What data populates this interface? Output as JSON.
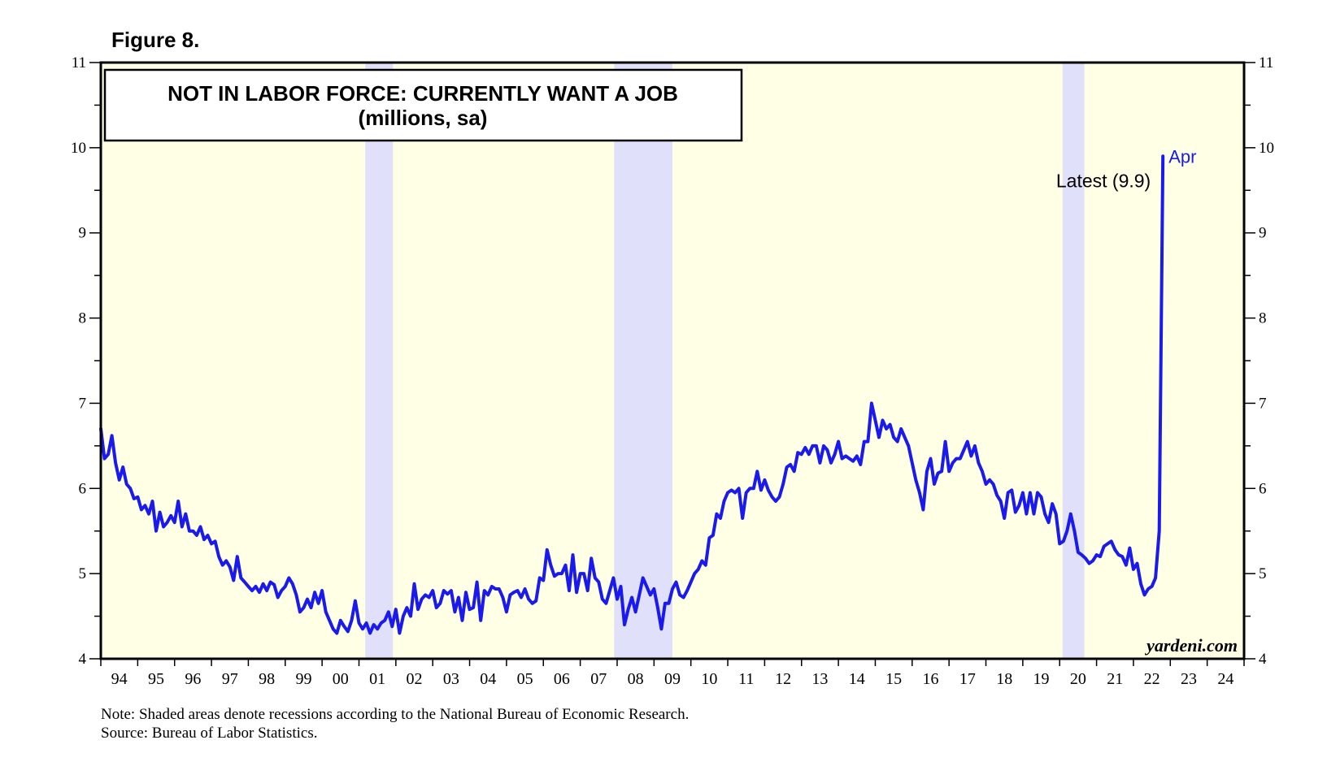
{
  "figure_label": "Figure 8.",
  "notes": {
    "note": "Note: Shaded areas denote recessions according to the National Bureau of Economic Research.",
    "source": "Source: Bureau of Labor Statistics."
  },
  "watermark": "yardeni.com",
  "colors": {
    "background": "#ffffe5",
    "recession": "#e0e0fa",
    "line": "#1a1aee",
    "frame": "#000000"
  },
  "chart_data": {
    "type": "line",
    "title": "NOT IN LABOR FORCE: CURRENTLY WANT A JOB",
    "subtitle": "(millions, sa)",
    "xlabel": "",
    "ylabel": "",
    "xlim": [
      1994,
      2025
    ],
    "ylim": [
      4,
      11
    ],
    "y_ticks": [
      4,
      5,
      6,
      7,
      8,
      9,
      10,
      11
    ],
    "x_tick_labels": [
      "94",
      "95",
      "96",
      "97",
      "98",
      "99",
      "00",
      "01",
      "02",
      "03",
      "04",
      "05",
      "06",
      "07",
      "08",
      "09",
      "10",
      "11",
      "12",
      "13",
      "14",
      "15",
      "16",
      "17",
      "18",
      "19",
      "20",
      "21",
      "22",
      "23",
      "24"
    ],
    "recessions": [
      [
        2001.17,
        2001.92
      ],
      [
        2007.92,
        2009.5
      ],
      [
        2020.08,
        2020.67
      ]
    ],
    "annotations": [
      {
        "text": "Latest (9.9)",
        "x": 2020.25,
        "y": 9.9
      },
      {
        "text": "Apr",
        "x": 2020.25,
        "y": 9.9
      }
    ],
    "series": [
      {
        "name": "Not in labor force: currently want a job",
        "points": [
          [
            1994.0,
            6.7
          ],
          [
            1994.1,
            6.35
          ],
          [
            1994.2,
            6.4
          ],
          [
            1994.3,
            6.62
          ],
          [
            1994.4,
            6.3
          ],
          [
            1994.5,
            6.1
          ],
          [
            1994.6,
            6.25
          ],
          [
            1994.7,
            6.05
          ],
          [
            1994.8,
            6.0
          ],
          [
            1994.9,
            5.88
          ],
          [
            1995.0,
            5.9
          ],
          [
            1995.1,
            5.75
          ],
          [
            1995.2,
            5.8
          ],
          [
            1995.3,
            5.7
          ],
          [
            1995.4,
            5.85
          ],
          [
            1995.5,
            5.5
          ],
          [
            1995.6,
            5.72
          ],
          [
            1995.7,
            5.55
          ],
          [
            1995.8,
            5.6
          ],
          [
            1995.9,
            5.68
          ],
          [
            1996.0,
            5.6
          ],
          [
            1996.1,
            5.85
          ],
          [
            1996.2,
            5.55
          ],
          [
            1996.3,
            5.7
          ],
          [
            1996.4,
            5.5
          ],
          [
            1996.5,
            5.5
          ],
          [
            1996.6,
            5.45
          ],
          [
            1996.7,
            5.55
          ],
          [
            1996.8,
            5.4
          ],
          [
            1996.9,
            5.45
          ],
          [
            1997.0,
            5.35
          ],
          [
            1997.1,
            5.38
          ],
          [
            1997.2,
            5.2
          ],
          [
            1997.3,
            5.1
          ],
          [
            1997.4,
            5.15
          ],
          [
            1997.5,
            5.08
          ],
          [
            1997.6,
            4.92
          ],
          [
            1997.7,
            5.2
          ],
          [
            1997.8,
            4.95
          ],
          [
            1997.9,
            4.9
          ],
          [
            1998.0,
            4.85
          ],
          [
            1998.1,
            4.8
          ],
          [
            1998.2,
            4.85
          ],
          [
            1998.3,
            4.78
          ],
          [
            1998.4,
            4.88
          ],
          [
            1998.5,
            4.8
          ],
          [
            1998.6,
            4.9
          ],
          [
            1998.7,
            4.87
          ],
          [
            1998.8,
            4.72
          ],
          [
            1998.9,
            4.8
          ],
          [
            1999.0,
            4.85
          ],
          [
            1999.1,
            4.95
          ],
          [
            1999.2,
            4.88
          ],
          [
            1999.3,
            4.75
          ],
          [
            1999.4,
            4.55
          ],
          [
            1999.5,
            4.6
          ],
          [
            1999.6,
            4.7
          ],
          [
            1999.7,
            4.6
          ],
          [
            1999.8,
            4.78
          ],
          [
            1999.9,
            4.65
          ],
          [
            2000.0,
            4.8
          ],
          [
            2000.1,
            4.55
          ],
          [
            2000.2,
            4.45
          ],
          [
            2000.3,
            4.35
          ],
          [
            2000.4,
            4.3
          ],
          [
            2000.5,
            4.45
          ],
          [
            2000.6,
            4.38
          ],
          [
            2000.7,
            4.32
          ],
          [
            2000.8,
            4.45
          ],
          [
            2000.9,
            4.68
          ],
          [
            2001.0,
            4.42
          ],
          [
            2001.1,
            4.35
          ],
          [
            2001.2,
            4.42
          ],
          [
            2001.3,
            4.3
          ],
          [
            2001.4,
            4.4
          ],
          [
            2001.5,
            4.35
          ],
          [
            2001.6,
            4.42
          ],
          [
            2001.7,
            4.45
          ],
          [
            2001.8,
            4.55
          ],
          [
            2001.9,
            4.38
          ],
          [
            2002.0,
            4.58
          ],
          [
            2002.1,
            4.3
          ],
          [
            2002.2,
            4.5
          ],
          [
            2002.3,
            4.6
          ],
          [
            2002.4,
            4.5
          ],
          [
            2002.5,
            4.88
          ],
          [
            2002.6,
            4.58
          ],
          [
            2002.7,
            4.7
          ],
          [
            2002.8,
            4.75
          ],
          [
            2002.9,
            4.72
          ],
          [
            2003.0,
            4.8
          ],
          [
            2003.1,
            4.6
          ],
          [
            2003.2,
            4.65
          ],
          [
            2003.3,
            4.8
          ],
          [
            2003.4,
            4.76
          ],
          [
            2003.5,
            4.8
          ],
          [
            2003.6,
            4.55
          ],
          [
            2003.7,
            4.72
          ],
          [
            2003.8,
            4.45
          ],
          [
            2003.9,
            4.78
          ],
          [
            2004.0,
            4.58
          ],
          [
            2004.1,
            4.6
          ],
          [
            2004.2,
            4.9
          ],
          [
            2004.3,
            4.45
          ],
          [
            2004.4,
            4.8
          ],
          [
            2004.5,
            4.75
          ],
          [
            2004.6,
            4.85
          ],
          [
            2004.7,
            4.82
          ],
          [
            2004.8,
            4.82
          ],
          [
            2004.9,
            4.72
          ],
          [
            2005.0,
            4.55
          ],
          [
            2005.1,
            4.75
          ],
          [
            2005.2,
            4.78
          ],
          [
            2005.3,
            4.8
          ],
          [
            2005.4,
            4.72
          ],
          [
            2005.5,
            4.82
          ],
          [
            2005.6,
            4.7
          ],
          [
            2005.7,
            4.65
          ],
          [
            2005.8,
            4.68
          ],
          [
            2005.9,
            4.95
          ],
          [
            2006.0,
            4.92
          ],
          [
            2006.1,
            5.28
          ],
          [
            2006.2,
            5.1
          ],
          [
            2006.3,
            4.97
          ],
          [
            2006.4,
            5.0
          ],
          [
            2006.5,
            5.0
          ],
          [
            2006.6,
            5.1
          ],
          [
            2006.7,
            4.8
          ],
          [
            2006.8,
            5.22
          ],
          [
            2006.9,
            4.78
          ],
          [
            2007.0,
            5.0
          ],
          [
            2007.1,
            5.0
          ],
          [
            2007.2,
            4.8
          ],
          [
            2007.3,
            5.18
          ],
          [
            2007.4,
            4.95
          ],
          [
            2007.5,
            4.9
          ],
          [
            2007.6,
            4.7
          ],
          [
            2007.7,
            4.65
          ],
          [
            2007.8,
            4.8
          ],
          [
            2007.9,
            4.95
          ],
          [
            2008.0,
            4.7
          ],
          [
            2008.1,
            4.85
          ],
          [
            2008.2,
            4.4
          ],
          [
            2008.3,
            4.58
          ],
          [
            2008.4,
            4.72
          ],
          [
            2008.5,
            4.55
          ],
          [
            2008.6,
            4.75
          ],
          [
            2008.7,
            4.95
          ],
          [
            2008.8,
            4.85
          ],
          [
            2008.9,
            4.75
          ],
          [
            2009.0,
            4.82
          ],
          [
            2009.1,
            4.6
          ],
          [
            2009.2,
            4.35
          ],
          [
            2009.3,
            4.65
          ],
          [
            2009.4,
            4.65
          ],
          [
            2009.5,
            4.82
          ],
          [
            2009.6,
            4.9
          ],
          [
            2009.7,
            4.75
          ],
          [
            2009.8,
            4.72
          ],
          [
            2009.9,
            4.8
          ],
          [
            2010.0,
            4.9
          ],
          [
            2010.1,
            5.0
          ],
          [
            2010.2,
            5.05
          ],
          [
            2010.3,
            5.15
          ],
          [
            2010.4,
            5.1
          ],
          [
            2010.5,
            5.42
          ],
          [
            2010.6,
            5.45
          ],
          [
            2010.7,
            5.7
          ],
          [
            2010.8,
            5.65
          ],
          [
            2010.9,
            5.85
          ],
          [
            2011.0,
            5.95
          ],
          [
            2011.1,
            5.98
          ],
          [
            2011.2,
            5.95
          ],
          [
            2011.3,
            6.0
          ],
          [
            2011.4,
            5.65
          ],
          [
            2011.5,
            5.95
          ],
          [
            2011.6,
            6.0
          ],
          [
            2011.7,
            6.0
          ],
          [
            2011.8,
            6.2
          ],
          [
            2011.9,
            5.98
          ],
          [
            2012.0,
            6.1
          ],
          [
            2012.1,
            5.98
          ],
          [
            2012.2,
            5.9
          ],
          [
            2012.3,
            5.85
          ],
          [
            2012.4,
            5.9
          ],
          [
            2012.5,
            6.05
          ],
          [
            2012.6,
            6.25
          ],
          [
            2012.7,
            6.28
          ],
          [
            2012.8,
            6.2
          ],
          [
            2012.9,
            6.42
          ],
          [
            2013.0,
            6.4
          ],
          [
            2013.1,
            6.48
          ],
          [
            2013.2,
            6.4
          ],
          [
            2013.3,
            6.5
          ],
          [
            2013.4,
            6.5
          ],
          [
            2013.5,
            6.3
          ],
          [
            2013.6,
            6.5
          ],
          [
            2013.7,
            6.45
          ],
          [
            2013.8,
            6.3
          ],
          [
            2013.9,
            6.4
          ],
          [
            2014.0,
            6.55
          ],
          [
            2014.1,
            6.35
          ],
          [
            2014.2,
            6.38
          ],
          [
            2014.3,
            6.35
          ],
          [
            2014.4,
            6.32
          ],
          [
            2014.5,
            6.38
          ],
          [
            2014.6,
            6.28
          ],
          [
            2014.7,
            6.55
          ],
          [
            2014.8,
            6.55
          ],
          [
            2014.9,
            7.0
          ],
          [
            2015.0,
            6.8
          ],
          [
            2015.1,
            6.6
          ],
          [
            2015.2,
            6.8
          ],
          [
            2015.3,
            6.7
          ],
          [
            2015.4,
            6.75
          ],
          [
            2015.5,
            6.6
          ],
          [
            2015.6,
            6.55
          ],
          [
            2015.7,
            6.7
          ],
          [
            2015.8,
            6.6
          ],
          [
            2015.9,
            6.5
          ],
          [
            2016.0,
            6.3
          ],
          [
            2016.1,
            6.1
          ],
          [
            2016.2,
            5.95
          ],
          [
            2016.3,
            5.75
          ],
          [
            2016.4,
            6.2
          ],
          [
            2016.5,
            6.35
          ],
          [
            2016.6,
            6.05
          ],
          [
            2016.7,
            6.18
          ],
          [
            2016.8,
            6.2
          ],
          [
            2016.9,
            6.55
          ],
          [
            2017.0,
            6.2
          ],
          [
            2017.1,
            6.3
          ],
          [
            2017.2,
            6.35
          ],
          [
            2017.3,
            6.35
          ],
          [
            2017.4,
            6.45
          ],
          [
            2017.5,
            6.55
          ],
          [
            2017.6,
            6.38
          ],
          [
            2017.7,
            6.5
          ],
          [
            2017.8,
            6.3
          ],
          [
            2017.9,
            6.2
          ],
          [
            2018.0,
            6.05
          ],
          [
            2018.1,
            6.1
          ],
          [
            2018.2,
            6.05
          ],
          [
            2018.3,
            5.92
          ],
          [
            2018.4,
            5.85
          ],
          [
            2018.5,
            5.65
          ],
          [
            2018.6,
            5.95
          ],
          [
            2018.7,
            5.98
          ],
          [
            2018.8,
            5.72
          ],
          [
            2018.9,
            5.8
          ],
          [
            2019.0,
            5.95
          ],
          [
            2019.1,
            5.7
          ],
          [
            2019.2,
            5.95
          ],
          [
            2019.3,
            5.7
          ],
          [
            2019.4,
            5.95
          ],
          [
            2019.5,
            5.9
          ],
          [
            2019.6,
            5.7
          ],
          [
            2019.7,
            5.6
          ],
          [
            2019.8,
            5.82
          ],
          [
            2019.9,
            5.7
          ],
          [
            2020.0,
            5.35
          ],
          [
            2020.1,
            5.38
          ],
          [
            2020.2,
            5.5
          ],
          [
            2020.3,
            5.7
          ],
          [
            2020.4,
            5.5
          ],
          [
            2020.5,
            5.25
          ],
          [
            2020.6,
            5.22
          ],
          [
            2020.7,
            5.18
          ],
          [
            2020.8,
            5.12
          ],
          [
            2020.9,
            5.15
          ],
          [
            2021.0,
            5.22
          ],
          [
            2021.1,
            5.2
          ],
          [
            2021.2,
            5.32
          ],
          [
            2021.3,
            5.35
          ],
          [
            2021.4,
            5.38
          ],
          [
            2021.5,
            5.28
          ],
          [
            2021.6,
            5.22
          ],
          [
            2021.7,
            5.2
          ],
          [
            2021.8,
            5.1
          ],
          [
            2021.9,
            5.3
          ],
          [
            2022.0,
            5.05
          ],
          [
            2022.1,
            5.12
          ],
          [
            2022.2,
            4.88
          ],
          [
            2022.3,
            4.75
          ],
          [
            2022.4,
            4.82
          ],
          [
            2022.5,
            4.85
          ],
          [
            2022.6,
            4.95
          ],
          [
            2022.7,
            5.5
          ],
          [
            2022.8,
            9.9
          ]
        ]
      }
    ]
  }
}
